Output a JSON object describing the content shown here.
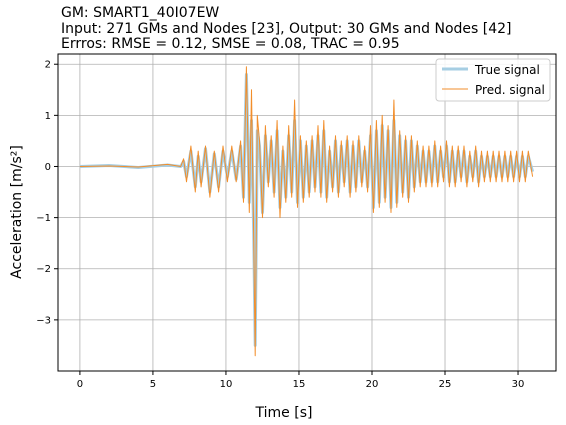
{
  "header": {
    "line1": "GM: SMART1_40I07EW",
    "line2": "Input: 271 GMs and Nodes [23], Output: 30 GMs and Nodes [42]",
    "line3": "Errros: RMSE = 0.12, SMSE = 0.08, TRAC = 0.95"
  },
  "chart_data": {
    "type": "line",
    "xlabel": "Time [s]",
    "ylabel": "Acceleration [m/s²]",
    "xlim": [
      -1.5,
      32.6
    ],
    "ylim": [
      -4.0,
      2.2
    ],
    "xticks": [
      0,
      5,
      10,
      15,
      20,
      25,
      30
    ],
    "yticks": [
      -3,
      -2,
      -1,
      0,
      1,
      2
    ],
    "ytick_labels": [
      "−3",
      "−2",
      "−1",
      "0",
      "1",
      "2"
    ],
    "grid": true,
    "legend_position": "top-right",
    "series": [
      {
        "name": "True signal",
        "color": "#a6cee3",
        "x": [
          0,
          2,
          4,
          6,
          6.9,
          7.1,
          7.3,
          7.6,
          7.9,
          8.1,
          8.3,
          8.6,
          8.9,
          9.2,
          9.5,
          9.8,
          10.1,
          10.4,
          10.7,
          11.0,
          11.2,
          11.4,
          11.6,
          11.75,
          11.9,
          12.0,
          12.15,
          12.3,
          12.5,
          12.7,
          12.9,
          13.1,
          13.3,
          13.5,
          13.7,
          13.9,
          14.1,
          14.3,
          14.5,
          14.7,
          14.9,
          15.1,
          15.3,
          15.5,
          15.7,
          15.9,
          16.1,
          16.3,
          16.5,
          16.7,
          16.9,
          17.1,
          17.3,
          17.5,
          17.7,
          17.9,
          18.1,
          18.3,
          18.5,
          18.7,
          18.9,
          19.1,
          19.3,
          19.5,
          19.7,
          19.9,
          20.1,
          20.3,
          20.5,
          20.7,
          20.9,
          21.1,
          21.3,
          21.5,
          21.7,
          21.9,
          22.1,
          22.3,
          22.5,
          22.7,
          22.9,
          23.1,
          23.3,
          23.5,
          23.7,
          23.9,
          24.1,
          24.3,
          24.5,
          24.7,
          24.9,
          25.1,
          25.3,
          25.5,
          25.7,
          25.9,
          26.1,
          26.3,
          26.5,
          26.7,
          26.9,
          27.1,
          27.3,
          27.5,
          27.7,
          27.9,
          28.1,
          28.3,
          28.5,
          28.7,
          28.9,
          29.1,
          29.3,
          29.5,
          29.7,
          29.9,
          30.1,
          30.3,
          30.5,
          30.7,
          31.0
        ],
        "y": [
          0,
          0.02,
          -0.02,
          0.03,
          0,
          0.1,
          -0.2,
          0.3,
          -0.4,
          0.2,
          -0.3,
          0.35,
          -0.5,
          0.25,
          -0.4,
          0.3,
          -0.2,
          0.3,
          -0.25,
          0.4,
          -0.6,
          1.8,
          -0.7,
          0.9,
          -1.3,
          -3.5,
          0.7,
          0.4,
          -0.9,
          0.6,
          -0.3,
          0.5,
          -0.5,
          0.7,
          -0.8,
          0.3,
          -0.6,
          0.6,
          -0.5,
          0.9,
          -0.7,
          0.5,
          -0.6,
          0.4,
          -0.5,
          0.5,
          -0.4,
          0.6,
          -0.5,
          0.7,
          -0.6,
          0.3,
          -0.4,
          0.5,
          -0.5,
          0.4,
          -0.3,
          0.5,
          -0.5,
          0.4,
          -0.4,
          0.5,
          -0.3,
          0.3,
          -0.4,
          0.6,
          -0.8,
          0.7,
          -0.7,
          0.8,
          -0.6,
          0.7,
          -0.8,
          0.9,
          -0.7,
          0.6,
          -0.5,
          0.5,
          -0.6,
          0.5,
          -0.4,
          0.4,
          -0.3,
          0.3,
          -0.3,
          0.3,
          -0.3,
          0.4,
          -0.3,
          0.3,
          -0.2,
          0.4,
          -0.3,
          0.3,
          -0.3,
          0.3,
          -0.2,
          0.3,
          -0.3,
          0.2,
          -0.2,
          0.3,
          -0.3,
          0.2,
          -0.2,
          0.2,
          -0.2,
          0.2,
          -0.2,
          0.2,
          -0.2,
          0.2,
          -0.2,
          0.2,
          -0.2,
          0.2,
          -0.2,
          0.2,
          -0.2,
          0.2,
          -0.1
        ]
      },
      {
        "name": "Pred. signal",
        "color": "#f28e2b",
        "x": [
          0,
          2,
          4,
          6,
          6.9,
          7.1,
          7.3,
          7.6,
          7.9,
          8.1,
          8.3,
          8.6,
          8.9,
          9.2,
          9.5,
          9.8,
          10.1,
          10.4,
          10.7,
          11.0,
          11.2,
          11.4,
          11.6,
          11.75,
          11.9,
          12.0,
          12.15,
          12.3,
          12.5,
          12.7,
          12.9,
          13.1,
          13.3,
          13.5,
          13.7,
          13.9,
          14.1,
          14.3,
          14.5,
          14.7,
          14.9,
          15.1,
          15.3,
          15.5,
          15.7,
          15.9,
          16.1,
          16.3,
          16.5,
          16.7,
          16.9,
          17.1,
          17.3,
          17.5,
          17.7,
          17.9,
          18.1,
          18.3,
          18.5,
          18.7,
          18.9,
          19.1,
          19.3,
          19.5,
          19.7,
          19.9,
          20.1,
          20.3,
          20.5,
          20.7,
          20.9,
          21.1,
          21.3,
          21.5,
          21.7,
          21.9,
          22.1,
          22.3,
          22.5,
          22.7,
          22.9,
          23.1,
          23.3,
          23.5,
          23.7,
          23.9,
          24.1,
          24.3,
          24.5,
          24.7,
          24.9,
          25.1,
          25.3,
          25.5,
          25.7,
          25.9,
          26.1,
          26.3,
          26.5,
          26.7,
          26.9,
          27.1,
          27.3,
          27.5,
          27.7,
          27.9,
          28.1,
          28.3,
          28.5,
          28.7,
          28.9,
          29.1,
          29.3,
          29.5,
          29.7,
          29.9,
          30.1,
          30.3,
          30.5,
          30.7,
          31.0
        ],
        "y": [
          0,
          0.01,
          -0.01,
          0.04,
          0,
          0.15,
          -0.3,
          0.4,
          -0.5,
          0.3,
          -0.4,
          0.4,
          -0.6,
          0.3,
          -0.5,
          0.4,
          -0.3,
          0.4,
          -0.3,
          0.5,
          -0.7,
          1.95,
          -0.9,
          1.5,
          -1.4,
          -3.7,
          1.0,
          0.5,
          -1.0,
          0.8,
          -0.4,
          0.6,
          -0.6,
          0.9,
          -1.0,
          0.4,
          -0.7,
          0.8,
          -0.6,
          1.3,
          -0.8,
          0.6,
          -0.7,
          0.5,
          -0.6,
          0.6,
          -0.5,
          0.8,
          -0.6,
          0.9,
          -0.7,
          0.4,
          -0.5,
          0.6,
          -0.6,
          0.5,
          -0.4,
          0.6,
          -0.6,
          0.5,
          -0.5,
          0.6,
          -0.4,
          0.4,
          -0.5,
          0.8,
          -0.9,
          0.9,
          -0.8,
          1.0,
          -0.7,
          0.8,
          -0.9,
          1.3,
          -0.8,
          0.7,
          -0.6,
          0.6,
          -0.7,
          0.6,
          -0.5,
          0.5,
          -0.4,
          0.4,
          -0.4,
          0.4,
          -0.4,
          0.5,
          -0.4,
          0.4,
          -0.3,
          0.5,
          -0.4,
          0.4,
          -0.4,
          0.4,
          -0.3,
          0.4,
          -0.4,
          0.3,
          -0.3,
          0.4,
          -0.4,
          0.3,
          -0.3,
          0.3,
          -0.3,
          0.3,
          -0.3,
          0.3,
          -0.3,
          0.3,
          -0.3,
          0.3,
          -0.3,
          0.3,
          -0.3,
          0.3,
          -0.3,
          0.3,
          -0.2
        ]
      }
    ]
  }
}
